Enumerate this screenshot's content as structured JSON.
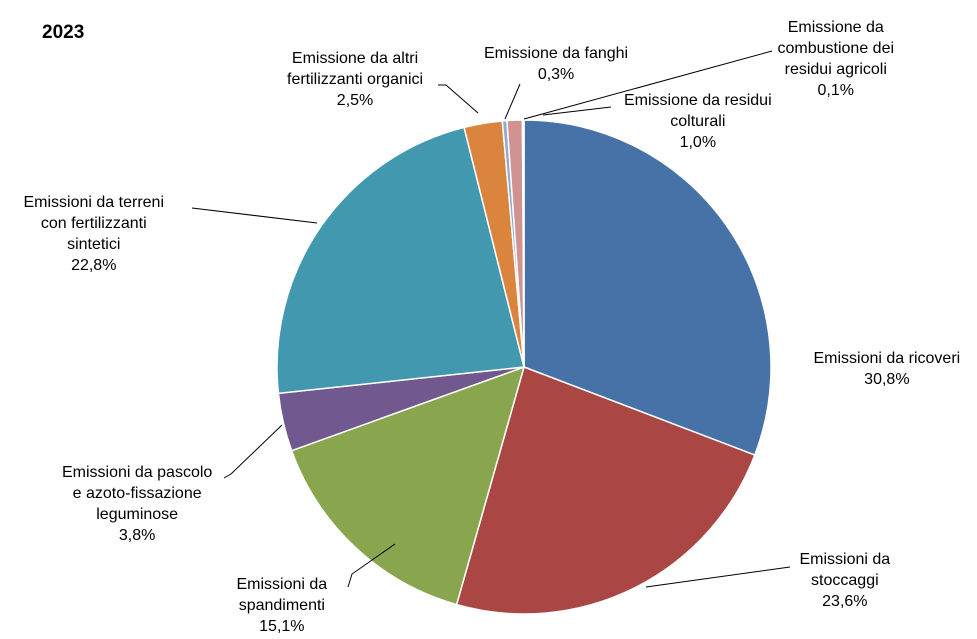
{
  "chart_data": {
    "type": "pie",
    "title": "2023",
    "unit": "%",
    "slices": [
      {
        "label": [
          "Emissioni da ricoveri"
        ],
        "value": 30.8,
        "value_label": "30,8%",
        "color": "#4672A8"
      },
      {
        "label": [
          "Emissioni da",
          "stoccaggi"
        ],
        "value": 23.6,
        "value_label": "23,6%",
        "color": "#AA4643"
      },
      {
        "label": [
          "Emissioni da",
          "spandimenti"
        ],
        "value": 15.1,
        "value_label": "15,1%",
        "color": "#89A54E"
      },
      {
        "label": [
          "Emissioni da pascolo",
          "e azoto-fissazione",
          "leguminose"
        ],
        "value": 3.8,
        "value_label": "3,8%",
        "color": "#71588F"
      },
      {
        "label": [
          "Emissioni da terreni",
          "con fertilizzanti",
          "sintetici"
        ],
        "value": 22.8,
        "value_label": "22,8%",
        "color": "#4198AF"
      },
      {
        "label": [
          "Emissione da altri",
          "fertilizzanti organici"
        ],
        "value": 2.5,
        "value_label": "2,5%",
        "color": "#DB843D"
      },
      {
        "label": [
          "Emissione da fanghi"
        ],
        "value": 0.3,
        "value_label": "0,3%",
        "color": "#93A9CF"
      },
      {
        "label": [
          "Emissione da residui",
          "colturali"
        ],
        "value": 1.0,
        "value_label": "1,0%",
        "color": "#D19392"
      },
      {
        "label": [
          "Emissione da",
          "combustione dei",
          "residui agricoli"
        ],
        "value": 0.1,
        "value_label": "0,1%",
        "color": "#B9CD96"
      }
    ]
  }
}
